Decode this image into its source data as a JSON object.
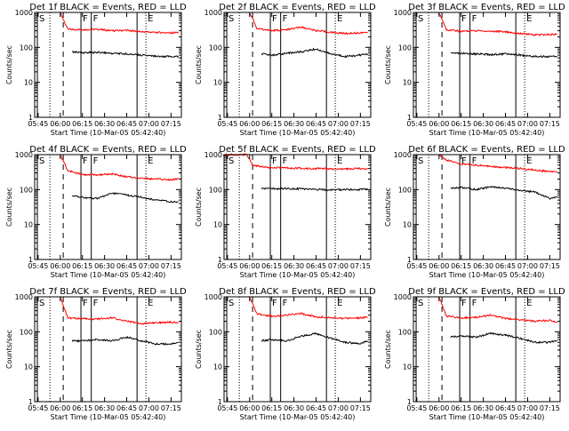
{
  "colors": {
    "events": "#000000",
    "lld": "#ff0000",
    "axes": "#000000",
    "background": "#ffffff"
  },
  "chart_data": {
    "type": "line",
    "log_y": true,
    "ylim": [
      1,
      1000
    ],
    "y_ticks": [
      "1",
      "10",
      "100",
      "1000"
    ],
    "x_ticks": [
      "05:45",
      "06:00",
      "06:15",
      "06:30",
      "06:45",
      "07:00",
      "07:15"
    ],
    "x_range": [
      "05:42:40",
      "07:22:00"
    ],
    "ylabel": "Counts/sec",
    "xlabel": "Start Time (10-Mar-05 05:42:40)",
    "grid": false,
    "event_markers": [
      {
        "time": "05:44:30",
        "style": "solid",
        "label": "S"
      },
      {
        "time": "05:53:00",
        "style": "dotted",
        "label": ""
      },
      {
        "time": "06:02:00",
        "style": "dashed",
        "label": ""
      },
      {
        "time": "06:14:00",
        "style": "solid",
        "label": "F"
      },
      {
        "time": "06:21:00",
        "style": "solid",
        "label": "F"
      },
      {
        "time": "06:52:00",
        "style": "solid",
        "label": ""
      },
      {
        "time": "06:58:00",
        "style": "dotted",
        "label": "E"
      }
    ],
    "panels": [
      {
        "title": "Det 1f  BLACK = Events, RED = LLD",
        "series": [
          {
            "color": "red",
            "x": [
              "06:00",
              "06:05",
              "06:15",
              "06:25",
              "06:35",
              "06:45",
              "06:55",
              "07:05",
              "07:15",
              "07:20"
            ],
            "y": [
              1000,
              330,
              320,
              330,
              300,
              310,
              280,
              270,
              260,
              270
            ]
          },
          {
            "color": "black",
            "x": [
              "06:08",
              "06:15",
              "06:25",
              "06:35",
              "06:45",
              "06:55",
              "07:05",
              "07:15",
              "07:20"
            ],
            "y": [
              75,
              70,
              72,
              68,
              65,
              60,
              55,
              55,
              55
            ]
          }
        ]
      },
      {
        "title": "Det 2f  BLACK = Events, RED = LLD",
        "series": [
          {
            "color": "red",
            "x": [
              "06:00",
              "06:05",
              "06:15",
              "06:25",
              "06:35",
              "06:45",
              "06:55",
              "07:05",
              "07:15",
              "07:20"
            ],
            "y": [
              1000,
              350,
              300,
              320,
              380,
              300,
              270,
              250,
              260,
              270
            ]
          },
          {
            "color": "black",
            "x": [
              "06:08",
              "06:15",
              "06:25",
              "06:35",
              "06:45",
              "06:55",
              "07:05",
              "07:15",
              "07:20"
            ],
            "y": [
              65,
              60,
              68,
              75,
              90,
              65,
              55,
              60,
              65
            ]
          }
        ]
      },
      {
        "title": "Det 3f  BLACK = Events, RED = LLD",
        "series": [
          {
            "color": "red",
            "x": [
              "06:00",
              "06:05",
              "06:15",
              "06:25",
              "06:35",
              "06:45",
              "06:55",
              "07:05",
              "07:15",
              "07:20"
            ],
            "y": [
              1000,
              320,
              290,
              300,
              290,
              280,
              250,
              230,
              230,
              240
            ]
          },
          {
            "color": "black",
            "x": [
              "06:08",
              "06:15",
              "06:25",
              "06:35",
              "06:45",
              "06:55",
              "07:05",
              "07:15",
              "07:20"
            ],
            "y": [
              70,
              68,
              65,
              62,
              65,
              60,
              55,
              55,
              55
            ]
          }
        ]
      },
      {
        "title": "Det 4f  BLACK = Events, RED = LLD",
        "series": [
          {
            "color": "red",
            "x": [
              "06:00",
              "06:05",
              "06:15",
              "06:25",
              "06:35",
              "06:45",
              "06:55",
              "07:05",
              "07:15",
              "07:20"
            ],
            "y": [
              1000,
              350,
              270,
              260,
              280,
              230,
              210,
              200,
              190,
              200
            ]
          },
          {
            "color": "black",
            "x": [
              "06:08",
              "06:15",
              "06:25",
              "06:35",
              "06:45",
              "06:55",
              "07:05",
              "07:15",
              "07:20"
            ],
            "y": [
              65,
              60,
              55,
              80,
              70,
              60,
              50,
              45,
              45
            ]
          }
        ]
      },
      {
        "title": "Det 5f  BLACK = Events, RED = LLD",
        "series": [
          {
            "color": "red",
            "x": [
              "05:42",
              "05:50",
              "05:58",
              "06:02",
              "06:15",
              "06:30",
              "06:45",
              "07:00",
              "07:15",
              "07:20"
            ],
            "y": [
              1000,
              1000,
              1000,
              500,
              420,
              410,
              400,
              380,
              400,
              390
            ]
          },
          {
            "color": "black",
            "x": [
              "06:08",
              "06:15",
              "06:25",
              "06:35",
              "06:45",
              "06:55",
              "07:05",
              "07:15",
              "07:20"
            ],
            "y": [
              110,
              105,
              108,
              105,
              100,
              98,
              100,
              100,
              105
            ]
          }
        ]
      },
      {
        "title": "Det 6f  BLACK = Events, RED = LLD",
        "series": [
          {
            "color": "red",
            "x": [
              "06:00",
              "06:05",
              "06:15",
              "06:25",
              "06:35",
              "06:45",
              "06:55",
              "07:05",
              "07:15",
              "07:20"
            ],
            "y": [
              1000,
              700,
              550,
              500,
              460,
              430,
              400,
              360,
              330,
              320
            ]
          },
          {
            "color": "black",
            "x": [
              "06:08",
              "06:15",
              "06:25",
              "06:35",
              "06:45",
              "06:55",
              "07:05",
              "07:15",
              "07:20"
            ],
            "y": [
              110,
              115,
              100,
              120,
              110,
              95,
              85,
              55,
              60
            ]
          }
        ]
      },
      {
        "title": "Det 7f  BLACK = Events, RED = LLD",
        "series": [
          {
            "color": "red",
            "x": [
              "06:00",
              "06:05",
              "06:15",
              "06:25",
              "06:35",
              "06:45",
              "06:55",
              "07:05",
              "07:15",
              "07:20"
            ],
            "y": [
              1000,
              250,
              240,
              230,
              250,
              200,
              170,
              180,
              190,
              180
            ]
          },
          {
            "color": "black",
            "x": [
              "06:08",
              "06:15",
              "06:25",
              "06:35",
              "06:45",
              "06:55",
              "07:05",
              "07:15",
              "07:20"
            ],
            "y": [
              55,
              55,
              60,
              55,
              70,
              55,
              45,
              45,
              50
            ]
          }
        ]
      },
      {
        "title": "Det 8f  BLACK = Events, RED = LLD",
        "series": [
          {
            "color": "red",
            "x": [
              "06:00",
              "06:05",
              "06:15",
              "06:25",
              "06:35",
              "06:45",
              "06:55",
              "07:05",
              "07:15",
              "07:20"
            ],
            "y": [
              1000,
              320,
              280,
              300,
              330,
              270,
              250,
              240,
              250,
              260
            ]
          },
          {
            "color": "black",
            "x": [
              "06:08",
              "06:15",
              "06:25",
              "06:35",
              "06:45",
              "06:55",
              "07:05",
              "07:15",
              "07:20"
            ],
            "y": [
              55,
              60,
              55,
              75,
              90,
              65,
              50,
              45,
              55
            ]
          }
        ]
      },
      {
        "title": "Det 9f  BLACK = Events, RED = LLD",
        "series": [
          {
            "color": "red",
            "x": [
              "06:00",
              "06:05",
              "06:15",
              "06:25",
              "06:35",
              "06:45",
              "06:55",
              "07:05",
              "07:15",
              "07:20"
            ],
            "y": [
              1000,
              280,
              250,
              260,
              300,
              240,
              220,
              200,
              210,
              190
            ]
          },
          {
            "color": "black",
            "x": [
              "06:08",
              "06:15",
              "06:25",
              "06:35",
              "06:45",
              "06:55",
              "07:05",
              "07:15",
              "07:20"
            ],
            "y": [
              70,
              75,
              70,
              90,
              80,
              65,
              50,
              50,
              55
            ]
          }
        ]
      }
    ]
  }
}
